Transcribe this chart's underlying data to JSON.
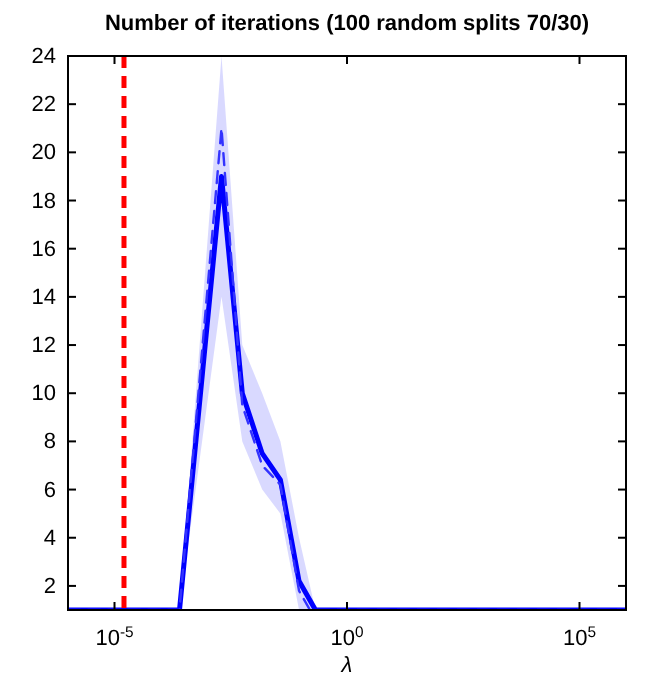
{
  "chart_data": {
    "type": "line",
    "title": "Number of iterations  (100 random splits 70/30)",
    "xlabel": "λ",
    "log": "x",
    "x": [
      1e-06,
      0.00025,
      0.002,
      0.0056,
      0.015,
      0.037,
      0.093,
      0.21,
      1000000.0
    ],
    "series": [
      {
        "color": "#0000ff",
        "values": [
          1,
          1,
          19,
          10,
          7.5,
          6.4,
          2.2,
          1,
          1
        ],
        "lower": [
          1,
          1,
          14,
          8,
          6,
          5,
          1,
          1,
          1
        ],
        "upper": [
          1,
          1,
          24,
          12,
          10,
          8,
          4,
          1,
          1
        ]
      },
      {
        "color": "#3333ff",
        "line_style": "dashed",
        "x": [
          1e-06,
          0.00025,
          0.002,
          0.0056,
          0.015,
          0.037,
          0.093,
          0.16,
          1000000.0
        ],
        "values": [
          1,
          1,
          21,
          9.5,
          7,
          6.2,
          1.8,
          1,
          1
        ]
      }
    ],
    "xlim": [
      1e-06,
      1000000.0
    ],
    "ylim": [
      1,
      24
    ],
    "xticks": [
      {
        "value": 1e-05,
        "label": "10$^{-5}$"
      },
      {
        "value": 1,
        "label": "10$^{0}$"
      },
      {
        "value": 100000.0,
        "label": "10$^{5}$"
      }
    ],
    "yticks": [
      2,
      4,
      6,
      8,
      10,
      12,
      14,
      16,
      18,
      20,
      22,
      24
    ],
    "ref_lines": [
      {
        "axis": "x",
        "value": 1.6e-05,
        "color": "#ff0000",
        "line_style": "dashed"
      }
    ],
    "grid": false
  }
}
